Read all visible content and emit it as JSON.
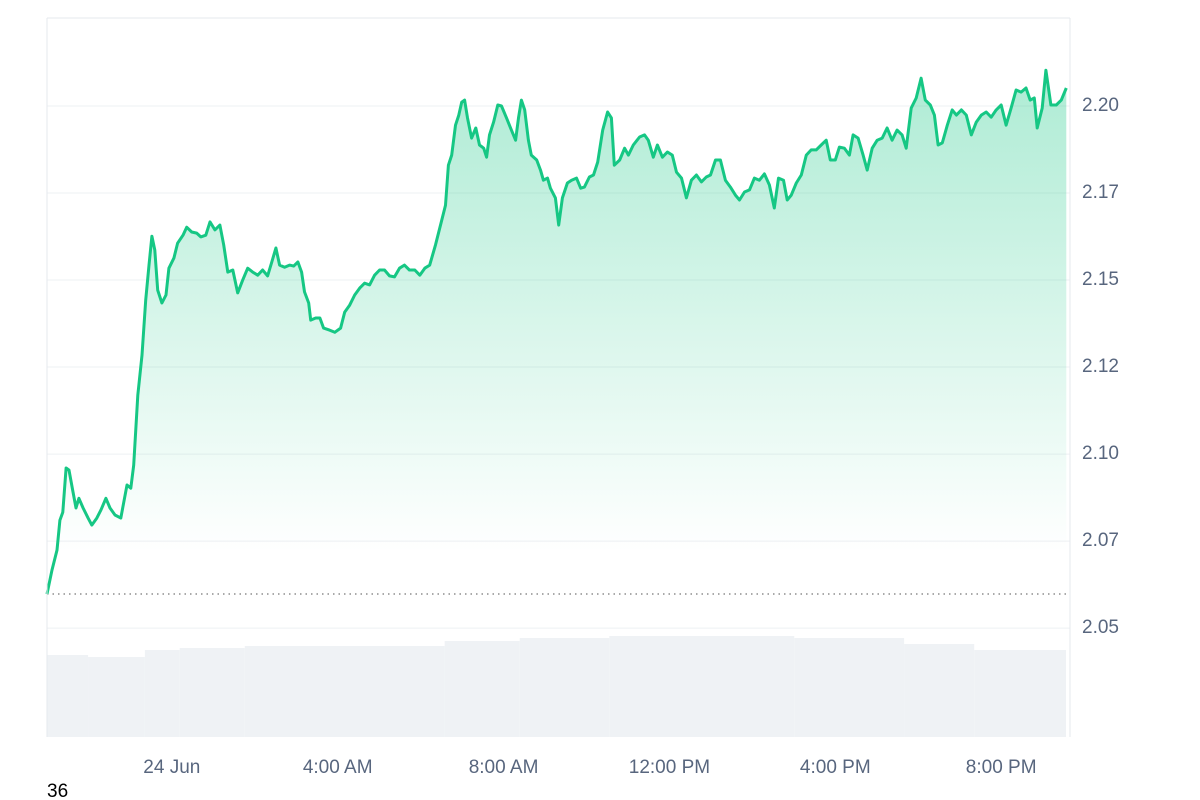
{
  "chart_data": {
    "type": "line",
    "color": "#16c784",
    "x": [
      -3.01,
      -2.89,
      -2.77,
      -2.7,
      -2.63,
      -2.55,
      -2.48,
      -2.39,
      -2.31,
      -2.24,
      -2.14,
      -2.02,
      -1.93,
      -1.81,
      -1.71,
      -1.59,
      -1.49,
      -1.37,
      -1.23,
      -1.08,
      -0.99,
      -0.92,
      -0.82,
      -0.72,
      -0.63,
      -0.55,
      -0.48,
      -0.41,
      -0.34,
      -0.24,
      -0.14,
      -0.07,
      0.05,
      0.14,
      0.27,
      0.36,
      0.48,
      0.6,
      0.7,
      0.82,
      0.92,
      1.04,
      1.16,
      1.25,
      1.35,
      1.47,
      1.59,
      1.71,
      1.83,
      1.95,
      2.07,
      2.19,
      2.31,
      2.41,
      2.51,
      2.6,
      2.72,
      2.84,
      2.94,
      3.04,
      3.13,
      3.2,
      3.3,
      3.35,
      3.47,
      3.57,
      3.66,
      3.81,
      3.93,
      4.07,
      4.17,
      4.29,
      4.41,
      4.53,
      4.65,
      4.77,
      4.89,
      5.01,
      5.13,
      5.25,
      5.37,
      5.49,
      5.61,
      5.73,
      5.86,
      5.98,
      6.1,
      6.22,
      6.36,
      6.48,
      6.6,
      6.67,
      6.75,
      6.84,
      6.92,
      6.99,
      7.06,
      7.13,
      7.23,
      7.33,
      7.42,
      7.52,
      7.59,
      7.66,
      7.76,
      7.86,
      7.95,
      8.07,
      8.19,
      8.29,
      8.36,
      8.43,
      8.51,
      8.6,
      8.67,
      8.8,
      8.89,
      8.96,
      9.06,
      9.13,
      9.25,
      9.33,
      9.42,
      9.54,
      9.64,
      9.76,
      9.86,
      9.95,
      10.07,
      10.17,
      10.27,
      10.39,
      10.51,
      10.6,
      10.67,
      10.8,
      10.92,
      11.01,
      11.13,
      11.28,
      11.4,
      11.49,
      11.61,
      11.71,
      11.83,
      11.95,
      12.07,
      12.17,
      12.29,
      12.41,
      12.53,
      12.65,
      12.77,
      12.89,
      12.99,
      13.11,
      13.23,
      13.35,
      13.47,
      13.59,
      13.69,
      13.81,
      13.93,
      14.05,
      14.17,
      14.29,
      14.41,
      14.53,
      14.63,
      14.75,
      14.84,
      14.94,
      15.06,
      15.18,
      15.3,
      15.42,
      15.54,
      15.66,
      15.78,
      15.88,
      16.0,
      16.1,
      16.22,
      16.34,
      16.43,
      16.55,
      16.67,
      16.77,
      16.89,
      17.01,
      17.13,
      17.25,
      17.37,
      17.49,
      17.61,
      17.71,
      17.83,
      17.95,
      18.07,
      18.17,
      18.29,
      18.39,
      18.48,
      18.58,
      18.7,
      18.82,
      18.92,
      19.04,
      19.16,
      19.28,
      19.4,
      19.52,
      19.64,
      19.76,
      19.88,
      20.0,
      20.12,
      20.24,
      20.36,
      20.48,
      20.6,
      20.7,
      20.8,
      20.87,
      20.99,
      21.08,
      21.2,
      21.33,
      21.45,
      21.57
    ],
    "values": [
      2.0598,
      2.0667,
      2.0724,
      2.081,
      2.0833,
      2.096,
      2.0954,
      2.0896,
      2.0845,
      2.0873,
      2.0845,
      2.0816,
      2.0796,
      2.0816,
      2.0839,
      2.0873,
      2.0845,
      2.0825,
      2.0816,
      2.0911,
      2.0902,
      2.0968,
      2.1169,
      2.1284,
      2.1442,
      2.1543,
      2.1626,
      2.1586,
      2.1471,
      2.1434,
      2.1457,
      2.1534,
      2.1563,
      2.1606,
      2.1629,
      2.1652,
      2.1638,
      2.1635,
      2.1624,
      2.1629,
      2.1667,
      2.1644,
      2.1658,
      2.1601,
      2.1523,
      2.1529,
      2.1463,
      2.15,
      2.1534,
      2.1523,
      2.1514,
      2.1529,
      2.1512,
      2.1552,
      2.1592,
      2.1543,
      2.1537,
      2.1543,
      2.154,
      2.1552,
      2.1523,
      2.1466,
      2.1434,
      2.1385,
      2.1391,
      2.1391,
      2.1362,
      2.1356,
      2.135,
      2.1362,
      2.1408,
      2.1428,
      2.1457,
      2.1477,
      2.1491,
      2.1486,
      2.1514,
      2.1529,
      2.1529,
      2.1512,
      2.1509,
      2.1534,
      2.1543,
      2.1529,
      2.1529,
      2.1514,
      2.1534,
      2.1543,
      2.1601,
      2.1658,
      2.1715,
      2.183,
      2.1859,
      2.1945,
      2.1974,
      2.2011,
      2.2017,
      2.1966,
      2.1908,
      2.1937,
      2.1888,
      2.1879,
      2.1853,
      2.1917,
      2.1954,
      2.2003,
      2.2,
      2.1966,
      2.1931,
      2.1902,
      2.1966,
      2.2017,
      2.1989,
      2.1902,
      2.1859,
      2.1845,
      2.1816,
      2.1787,
      2.1793,
      2.1764,
      2.1736,
      2.1658,
      2.1736,
      2.1779,
      2.1787,
      2.1793,
      2.1764,
      2.1767,
      2.1796,
      2.1802,
      2.1839,
      2.1931,
      2.1983,
      2.1966,
      2.183,
      2.1845,
      2.1879,
      2.1859,
      2.1888,
      2.1911,
      2.1917,
      2.1902,
      2.1853,
      2.1888,
      2.1853,
      2.1868,
      2.1859,
      2.181,
      2.1793,
      2.1736,
      2.1787,
      2.1802,
      2.1782,
      2.1796,
      2.1802,
      2.1845,
      2.1845,
      2.1787,
      2.1767,
      2.1744,
      2.173,
      2.1753,
      2.1759,
      2.1793,
      2.1787,
      2.1805,
      2.1773,
      2.1707,
      2.1793,
      2.1787,
      2.173,
      2.1744,
      2.1779,
      2.1802,
      2.1859,
      2.1874,
      2.1874,
      2.1888,
      2.1902,
      2.1845,
      2.1845,
      2.1882,
      2.1879,
      2.1859,
      2.1917,
      2.1908,
      2.1859,
      2.1816,
      2.1879,
      2.1902,
      2.1908,
      2.1937,
      2.1902,
      2.1931,
      2.1917,
      2.1879,
      2.1994,
      2.2023,
      2.208,
      2.2017,
      2.2003,
      2.1974,
      2.1888,
      2.1894,
      2.1945,
      2.1989,
      2.1974,
      2.1989,
      2.1974,
      2.1917,
      2.1954,
      2.1974,
      2.1983,
      2.1968,
      2.1989,
      2.2003,
      2.1945,
      2.1994,
      2.2046,
      2.204,
      2.2052,
      2.2017,
      2.2023,
      2.1937,
      2.1994,
      2.2103,
      2.2003,
      2.2003,
      2.2017,
      2.2052
    ],
    "baseline": 2.0598,
    "xlim": [
      -3.01,
      21.66
    ],
    "ylim": [
      2.0187,
      2.2253
    ],
    "yticks": [
      {
        "value": 2.05,
        "label": "2.05"
      },
      {
        "value": 2.075,
        "label": "2.07"
      },
      {
        "value": 2.1,
        "label": "2.10"
      },
      {
        "value": 2.125,
        "label": "2.12"
      },
      {
        "value": 2.15,
        "label": "2.15"
      },
      {
        "value": 2.175,
        "label": "2.17"
      },
      {
        "value": 2.2,
        "label": "2.20"
      }
    ],
    "xticks": [
      {
        "value": 0,
        "label": "24 Jun"
      },
      {
        "value": 4,
        "label": "4:00 AM"
      },
      {
        "value": 8,
        "label": "8:00 AM"
      },
      {
        "value": 12,
        "label": "12:00 PM"
      },
      {
        "value": 16,
        "label": "4:00 PM"
      },
      {
        "value": 20,
        "label": "8:00 PM"
      }
    ],
    "grid": true,
    "volume": {
      "color": "#eff2f5",
      "vlim": [
        0,
        100
      ],
      "x": [
        -3.01,
        -2.02,
        -0.65,
        0.19,
        1.76,
        6.58,
        8.39,
        10.55,
        15.01,
        17.66,
        19.35
      ],
      "values": [
        82,
        80,
        87,
        89,
        91,
        96,
        99,
        101,
        99,
        93,
        87
      ]
    },
    "footer_text": "36"
  }
}
